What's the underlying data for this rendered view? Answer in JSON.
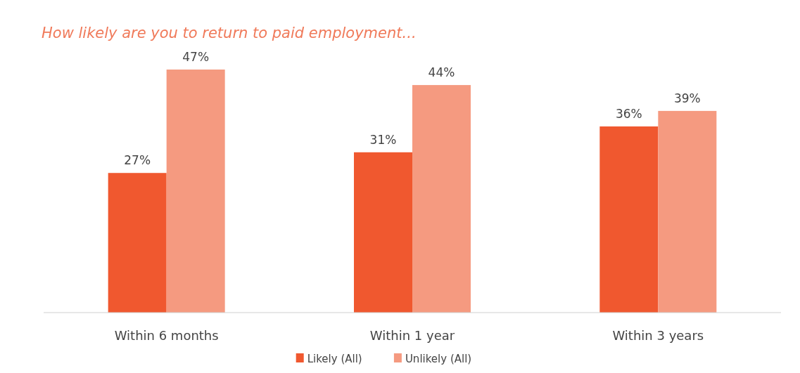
{
  "chart_data": {
    "type": "bar",
    "title": "How likely are you to return to paid employment...",
    "categories": [
      "Within 6 months",
      "Within 1 year",
      "Within 3 years"
    ],
    "series": [
      {
        "name": "Likely (All)",
        "color": "#f0582f",
        "values": [
          27,
          31,
          36
        ],
        "value_labels": [
          "27%",
          "31%",
          "36%"
        ]
      },
      {
        "name": "Unlikely (All)",
        "color": "#f59a80",
        "values": [
          47,
          44,
          39
        ],
        "value_labels": [
          "47%",
          "44%",
          "39%"
        ]
      }
    ],
    "legend": "bottom",
    "grid": false
  }
}
